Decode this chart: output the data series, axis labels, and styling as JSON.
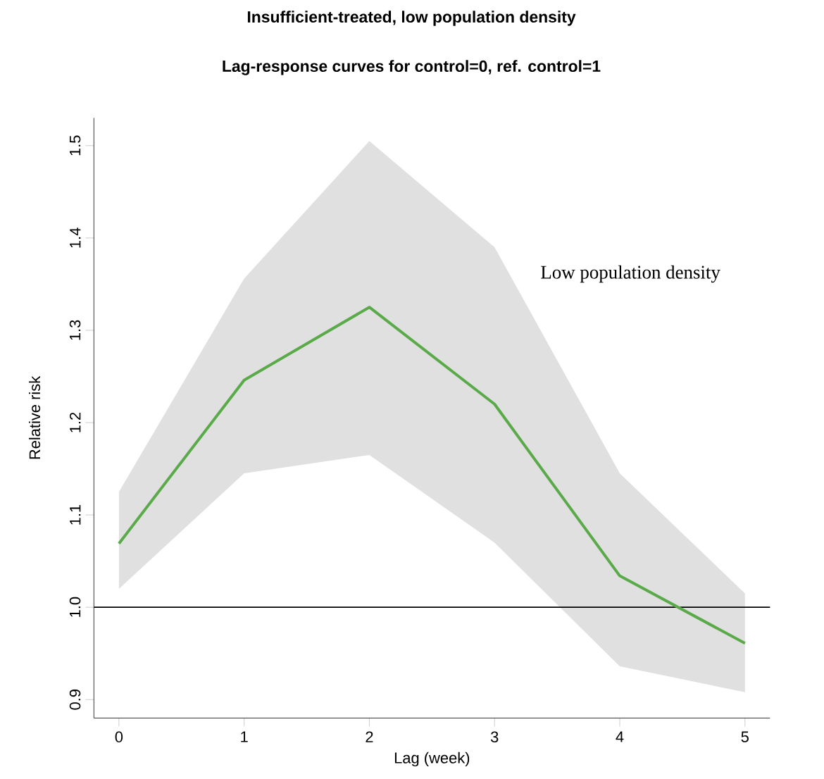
{
  "chart_data": {
    "type": "line",
    "title": "Insufficient-treated, low population density",
    "subtitle": "Lag-response curves for control=0, ref. control=1",
    "xlabel": "Lag  (week)",
    "ylabel": "Relative risk",
    "x": [
      0,
      1,
      2,
      3,
      4,
      5
    ],
    "series": [
      {
        "color": "#5aaa4a",
        "values": [
          1.069,
          1.246,
          1.325,
          1.22,
          1.034,
          0.961
        ],
        "lower": [
          1.02,
          1.145,
          1.165,
          1.07,
          0.936,
          0.908
        ],
        "upper": [
          1.125,
          1.356,
          1.505,
          1.39,
          1.145,
          1.015
        ]
      }
    ],
    "xlim": [
      -0.2,
      5.2
    ],
    "ylim": [
      0.88,
      1.53
    ],
    "xticks": [
      0,
      1,
      2,
      3,
      4,
      5
    ],
    "yticks": [
      0.9,
      {
        "value": 1.0,
        "label": "1.0"
      },
      1.1,
      1.2,
      1.3,
      1.4,
      1.5
    ],
    "ref_lines": [
      {
        "axis": "y",
        "value": 1.0,
        "color": "#000000"
      }
    ],
    "annotations": [
      "Low population density"
    ],
    "marker": "none",
    "line_style": "solid"
  }
}
